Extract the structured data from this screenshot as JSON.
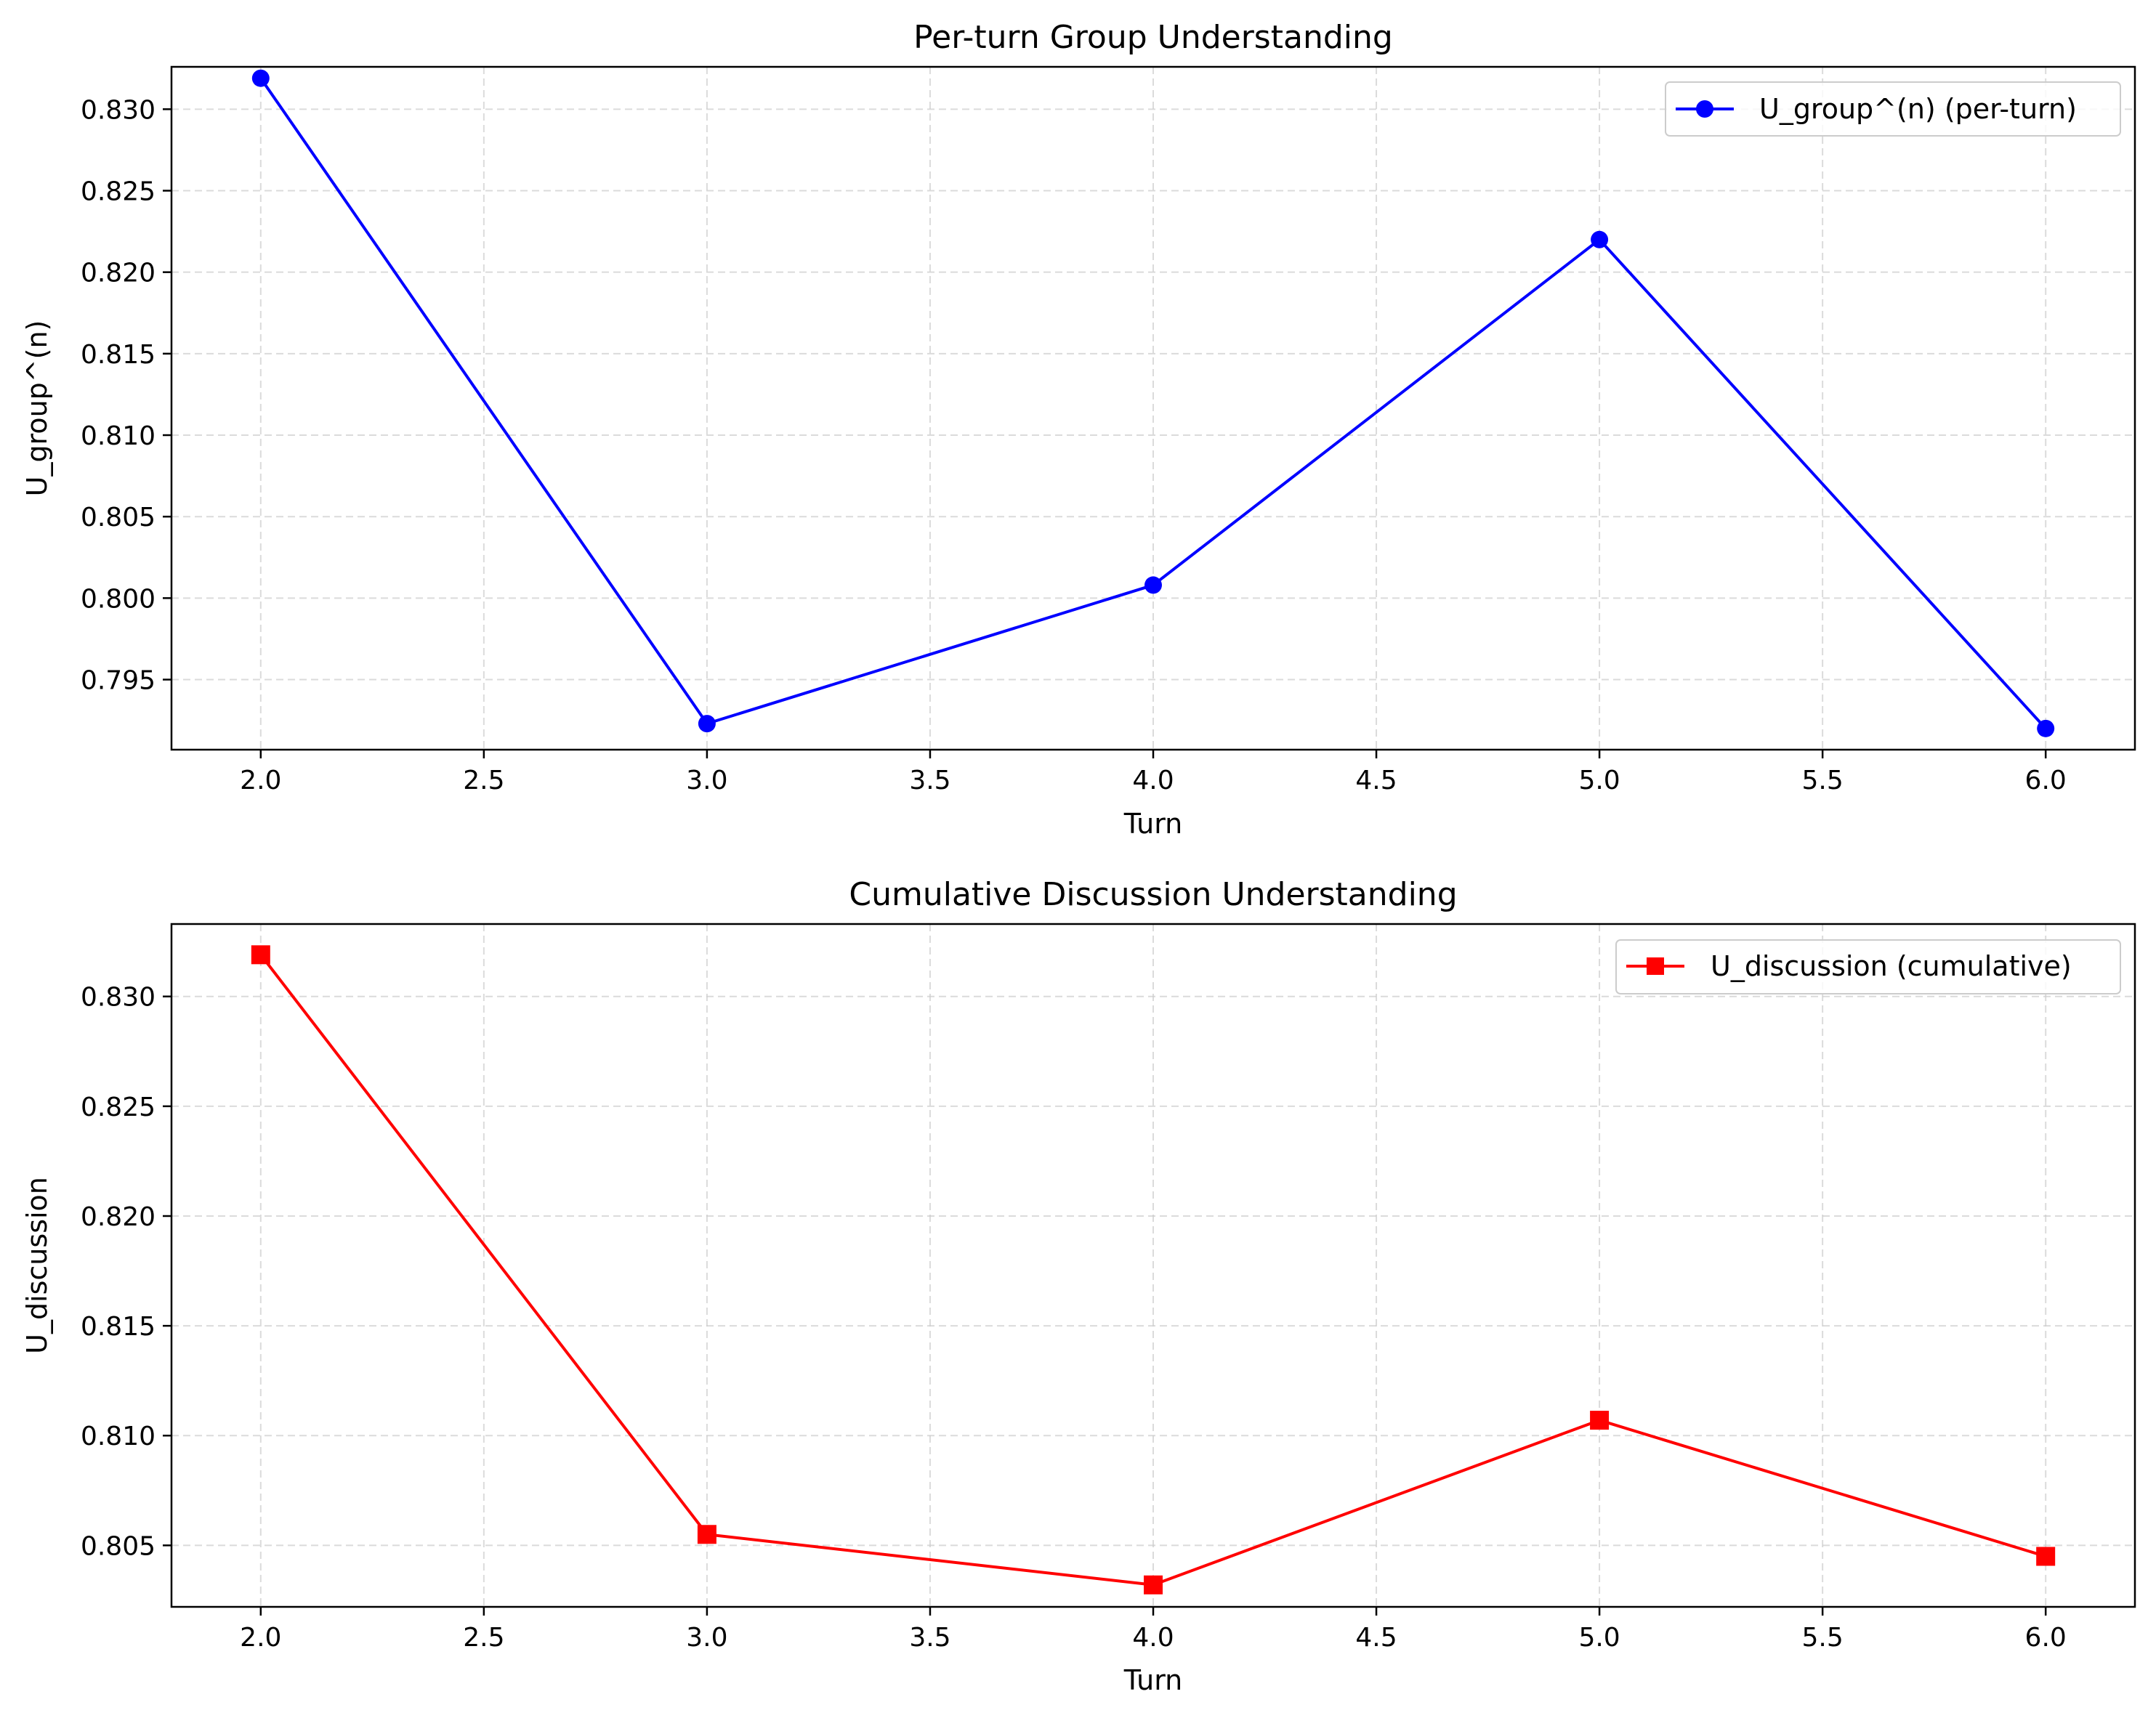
{
  "colors": {
    "background": "#ffffff",
    "grid": "#cccccc",
    "axes": "#000000"
  },
  "chart_data": [
    {
      "type": "line",
      "title": "Per-turn Group Understanding",
      "xlabel": "Turn",
      "ylabel": "U_group^(n)",
      "xlim": [
        1.8,
        6.2
      ],
      "ylim": [
        0.7907,
        0.8326
      ],
      "xticks": [
        2.0,
        2.5,
        3.0,
        3.5,
        4.0,
        4.5,
        5.0,
        5.5,
        6.0
      ],
      "xtick_labels": [
        "2.0",
        "2.5",
        "3.0",
        "3.5",
        "4.0",
        "4.5",
        "5.0",
        "5.5",
        "6.0"
      ],
      "yticks": [
        0.795,
        0.8,
        0.805,
        0.81,
        0.815,
        0.82,
        0.825,
        0.83
      ],
      "ytick_labels": [
        "0.795",
        "0.800",
        "0.805",
        "0.810",
        "0.815",
        "0.820",
        "0.825",
        "0.830"
      ],
      "grid": true,
      "legend_position": "top-right",
      "series": [
        {
          "name": "U_group^(n) (per-turn)",
          "color": "#0000ff",
          "marker": "circle",
          "x": [
            2,
            3,
            4,
            5,
            6
          ],
          "y": [
            0.8319,
            0.7923,
            0.8008,
            0.822,
            0.792
          ]
        }
      ]
    },
    {
      "type": "line",
      "title": "Cumulative Discussion Understanding",
      "xlabel": "Turn",
      "ylabel": "U_discussion",
      "xlim": [
        1.8,
        6.2
      ],
      "ylim": [
        0.8022,
        0.8333
      ],
      "xticks": [
        2.0,
        2.5,
        3.0,
        3.5,
        4.0,
        4.5,
        5.0,
        5.5,
        6.0
      ],
      "xtick_labels": [
        "2.0",
        "2.5",
        "3.0",
        "3.5",
        "4.0",
        "4.5",
        "5.0",
        "5.5",
        "6.0"
      ],
      "yticks": [
        0.805,
        0.81,
        0.815,
        0.82,
        0.825,
        0.83
      ],
      "ytick_labels": [
        "0.805",
        "0.810",
        "0.815",
        "0.820",
        "0.825",
        "0.830"
      ],
      "grid": true,
      "legend_position": "top-right",
      "series": [
        {
          "name": "U_discussion (cumulative)",
          "color": "#ff0000",
          "marker": "square",
          "x": [
            2,
            3,
            4,
            5,
            6
          ],
          "y": [
            0.8319,
            0.8055,
            0.8032,
            0.8107,
            0.8045
          ]
        }
      ]
    }
  ]
}
